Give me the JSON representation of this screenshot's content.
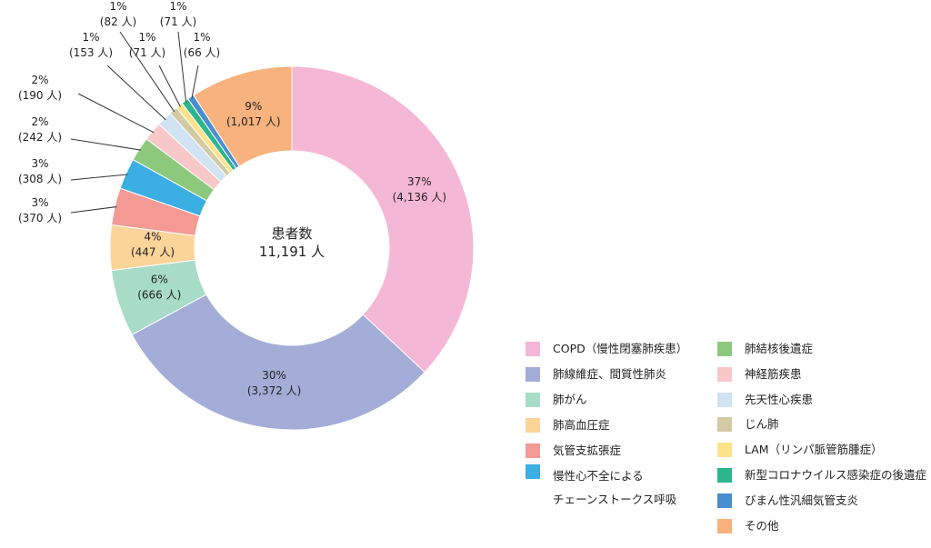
{
  "chart_data": {
    "type": "pie",
    "center_label": {
      "title": "患者数",
      "total": "11,191 人"
    },
    "slices": [
      {
        "name": "COPD（慢性閉塞肺疾患）",
        "value": 4136,
        "percent": "37%",
        "count_label": "(4,136 人)",
        "color": "#F5B7D6"
      },
      {
        "name": "肺線維症、間質性肺炎",
        "value": 3372,
        "percent": "30%",
        "count_label": "(3,372 人)",
        "color": "#A3ADD8"
      },
      {
        "name": "肺がん",
        "value": 666,
        "percent": "6%",
        "count_label": "(666 人)",
        "color": "#A8DCC8"
      },
      {
        "name": "肺高血圧症",
        "value": 447,
        "percent": "4%",
        "count_label": "(447 人)",
        "color": "#FBD49A"
      },
      {
        "name": "気管支拡張症",
        "value": 370,
        "percent": "3%",
        "count_label": "(370 人)",
        "color": "#F29A93"
      },
      {
        "name": "慢性心不全による\nチェーンストークス呼吸",
        "value": 308,
        "percent": "3%",
        "count_label": "(308 人)",
        "color": "#3BAEE3"
      },
      {
        "name": "肺結核後遺症",
        "value": 242,
        "percent": "2%",
        "count_label": "(242 人)",
        "color": "#8CC97C"
      },
      {
        "name": "神経筋疾患",
        "value": 190,
        "percent": "2%",
        "count_label": "(190 人)",
        "color": "#F8C8C8"
      },
      {
        "name": "先天性心疾患",
        "value": 153,
        "percent": "1%",
        "count_label": "(153 人)",
        "color": "#CFE3F2"
      },
      {
        "name": "じん肺",
        "value": 82,
        "percent": "1%",
        "count_label": "(82 人)",
        "color": "#D3C9A4"
      },
      {
        "name": "LAM（リンパ脈管筋腫症）",
        "value": 71,
        "percent": "1%",
        "count_label": "(71 人)",
        "color": "#FCE38A"
      },
      {
        "name": "新型コロナウイルス感染症の後遺症",
        "value": 71,
        "percent": "1%",
        "count_label": "(71 人)",
        "color": "#2DB58C"
      },
      {
        "name": "びまん性汎細気管支炎",
        "value": 66,
        "percent": "1%",
        "count_label": "(66 人)",
        "color": "#4A8FCF"
      },
      {
        "name": "その他",
        "value": 1017,
        "percent": "9%",
        "count_label": "(1,017 人)",
        "color": "#F7B27E"
      }
    ],
    "legend_placement": "bottom-right"
  }
}
